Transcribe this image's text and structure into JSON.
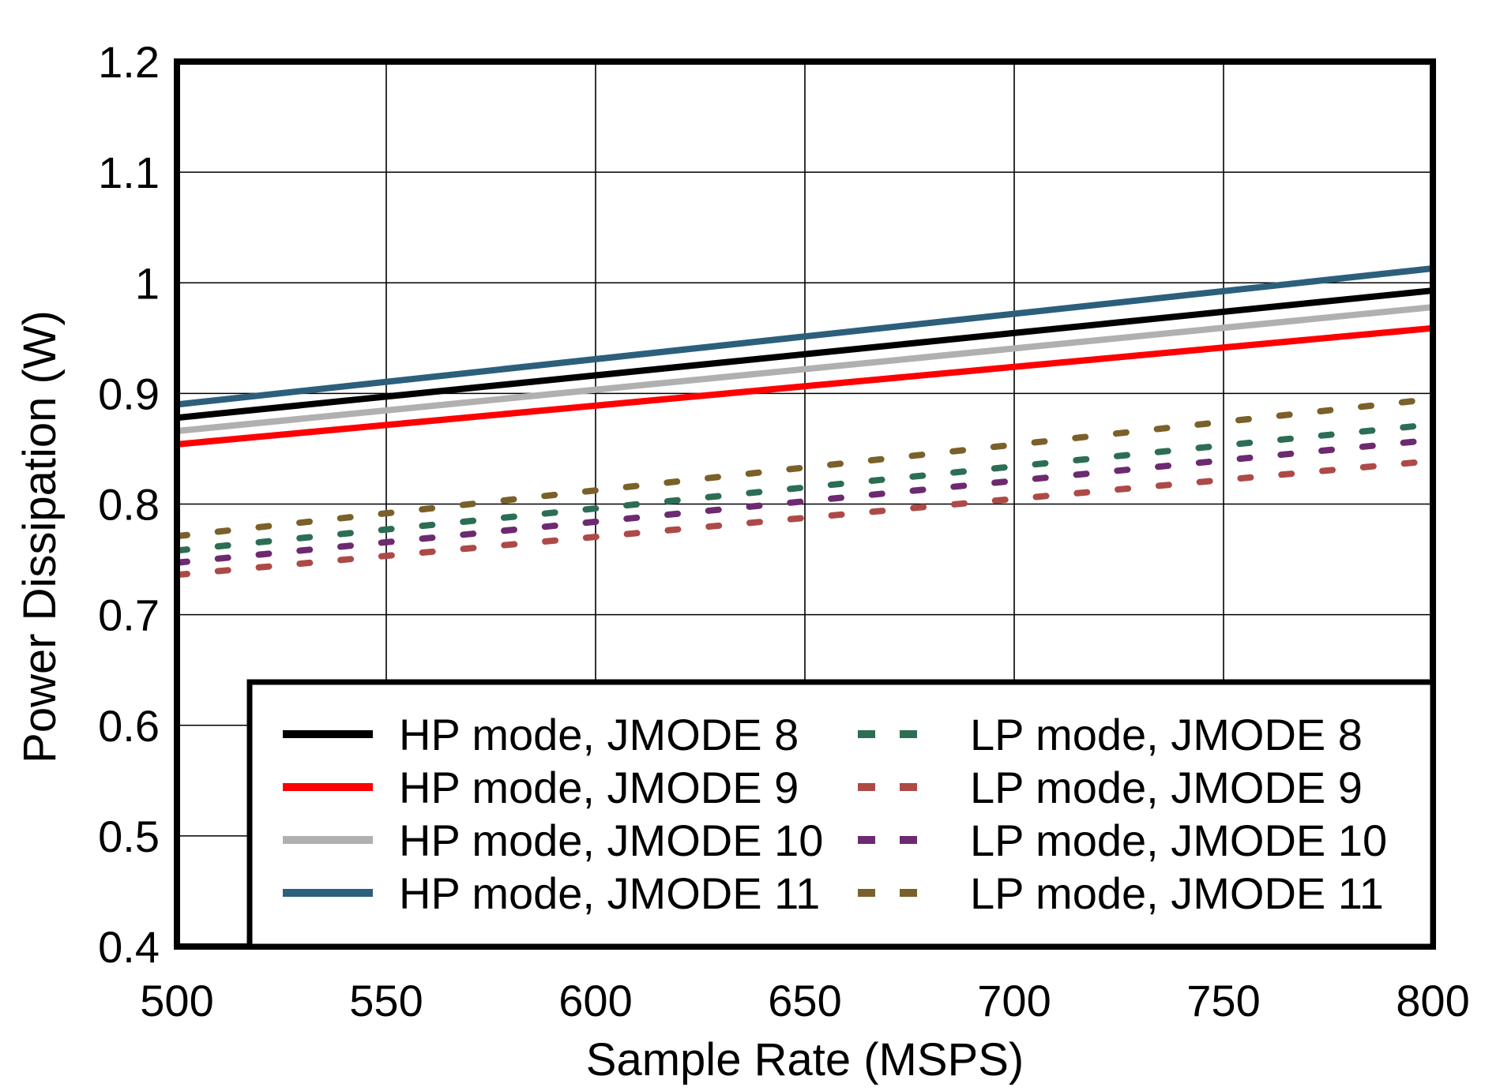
{
  "chart_data": {
    "type": "line",
    "title": "",
    "xlabel": "Sample Rate (MSPS)",
    "ylabel": "Power Dissipation (W)",
    "xlim": [
      500,
      800
    ],
    "ylim": [
      0.4,
      1.2
    ],
    "grid": true,
    "legend_position": "inside-bottom",
    "x_ticks": [
      {
        "value": 500,
        "label": "500"
      },
      {
        "value": 550,
        "label": "550"
      },
      {
        "value": 600,
        "label": "600"
      },
      {
        "value": 650,
        "label": "650"
      },
      {
        "value": 700,
        "label": "700"
      },
      {
        "value": 750,
        "label": "750"
      },
      {
        "value": 800,
        "label": "800"
      }
    ],
    "y_ticks": [
      {
        "value": 1.2,
        "label": "1.2"
      },
      {
        "value": 1.1,
        "label": "1.1"
      },
      {
        "value": 1.0,
        "label": "1"
      },
      {
        "value": 0.9,
        "label": "0.9"
      },
      {
        "value": 0.8,
        "label": "0.8"
      },
      {
        "value": 0.7,
        "label": "0.7"
      },
      {
        "value": 0.6,
        "label": "0.6"
      },
      {
        "value": 0.5,
        "label": "0.5"
      },
      {
        "value": 0.4,
        "label": "0.4"
      }
    ],
    "x": [
      500,
      800
    ],
    "series": [
      {
        "name": "HP mode, JMODE 8",
        "slug": "hp-jmode-8",
        "mode": "HP",
        "line_style": "solid",
        "color": "#000000",
        "values": [
          0.878,
          0.993
        ]
      },
      {
        "name": "HP mode, JMODE 9",
        "slug": "hp-jmode-9",
        "mode": "HP",
        "line_style": "solid",
        "color": "#FF0000",
        "values": [
          0.854,
          0.959
        ]
      },
      {
        "name": "HP mode, JMODE 10",
        "slug": "hp-jmode-10",
        "mode": "HP",
        "line_style": "solid",
        "color": "#B0B0B0",
        "values": [
          0.866,
          0.978
        ]
      },
      {
        "name": "HP mode, JMODE 11",
        "slug": "hp-jmode-11",
        "mode": "HP",
        "line_style": "solid",
        "color": "#2C5F7C",
        "values": [
          0.89,
          1.013
        ]
      },
      {
        "name": "LP mode, JMODE 8",
        "slug": "lp-jmode-8",
        "mode": "LP",
        "line_style": "dashed",
        "color": "#2C6E54",
        "values": [
          0.758,
          0.872
        ]
      },
      {
        "name": "LP mode, JMODE 9",
        "slug": "lp-jmode-9",
        "mode": "LP",
        "line_style": "dashed",
        "color": "#AD4A47",
        "values": [
          0.736,
          0.839
        ]
      },
      {
        "name": "LP mode, JMODE 10",
        "slug": "lp-jmode-10",
        "mode": "LP",
        "line_style": "dashed",
        "color": "#6D2A70",
        "values": [
          0.747,
          0.858
        ]
      },
      {
        "name": "LP mode, JMODE 11",
        "slug": "lp-jmode-11",
        "mode": "LP",
        "line_style": "dashed",
        "color": "#7A6129",
        "values": [
          0.771,
          0.895
        ]
      }
    ],
    "legend": {
      "left_column_series": [
        "HP mode, JMODE 8",
        "HP mode, JMODE 9",
        "HP mode, JMODE 10",
        "HP mode, JMODE 11"
      ],
      "right_column_series": [
        "LP mode, JMODE 8",
        "LP mode, JMODE 9",
        "LP mode, JMODE 10",
        "LP mode, JMODE 11"
      ]
    },
    "colors": {
      "frame": "#000000",
      "gridline": "#000000",
      "background": "#FFFFFF"
    }
  }
}
